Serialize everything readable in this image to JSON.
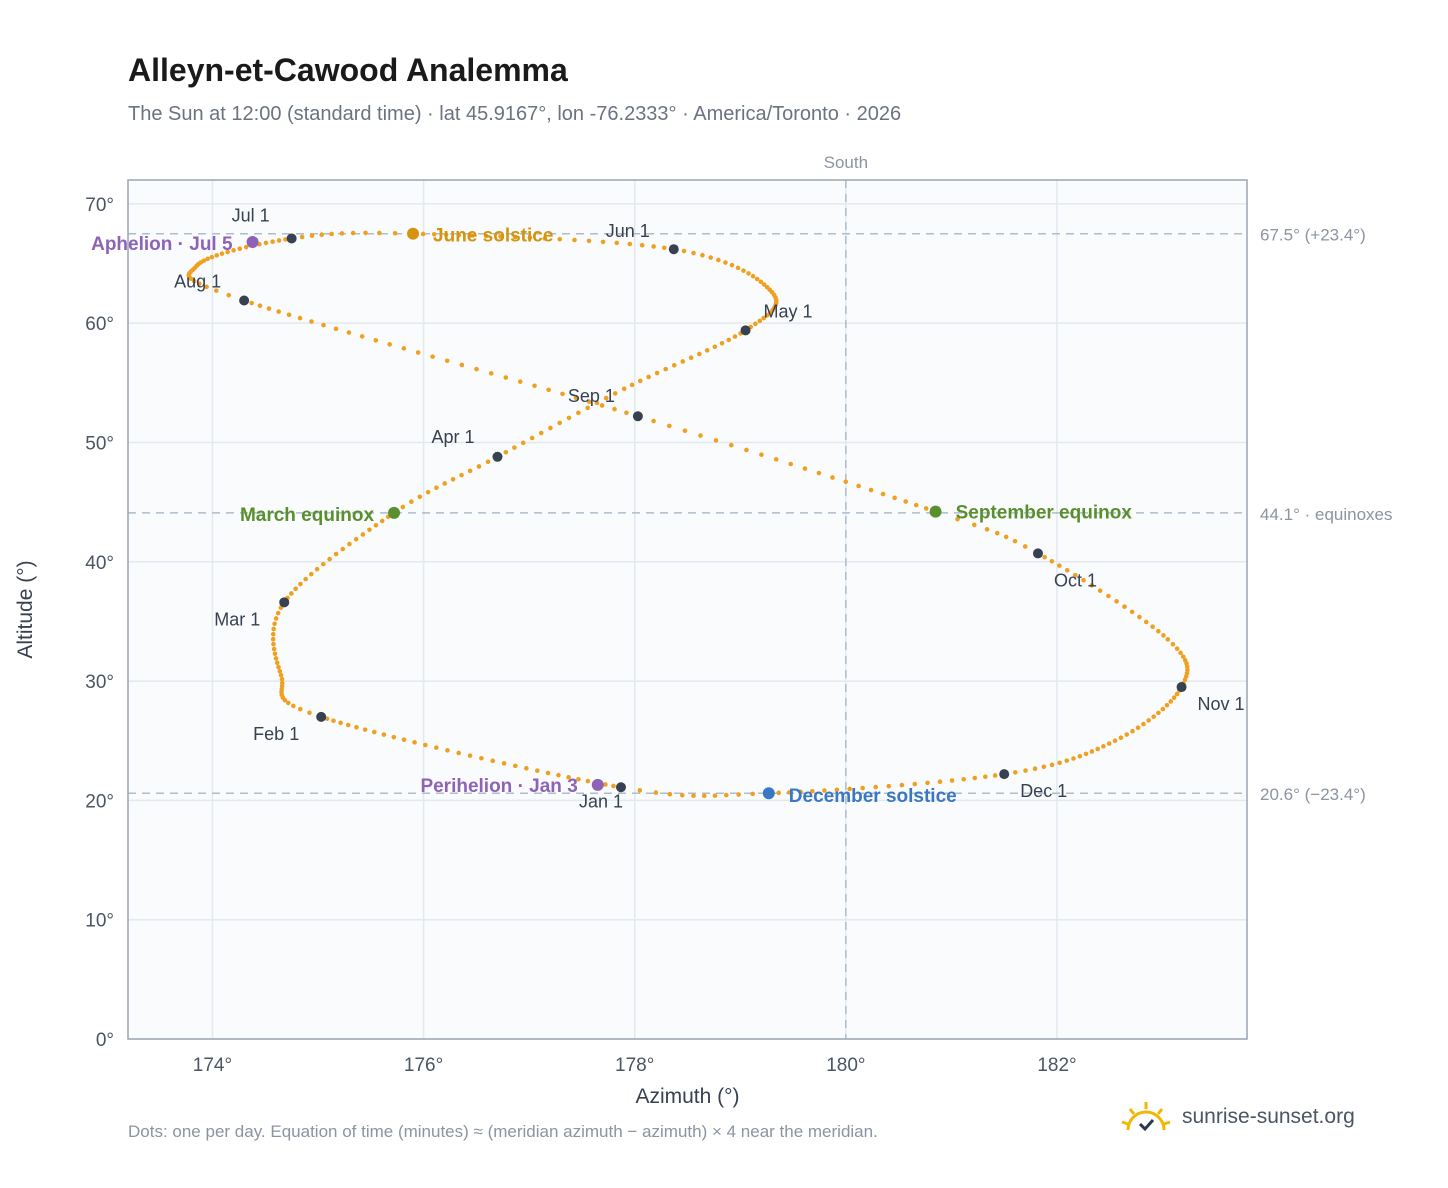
{
  "header": {
    "title": "Alleyn-et-Cawood Analemma",
    "subtitle": "The Sun at 12:00 (standard time) · lat 45.9167°, lon -76.2333° · America/Toronto · 2026"
  },
  "footer": {
    "note": "Dots: one per day. Equation of time (minutes) ≈ (meridian azimuth − azimuth) × 4 near the meridian.",
    "brand": "sunrise-sunset.org"
  },
  "colors": {
    "path": "#f0a020",
    "month_marker": "#374151",
    "solstice_june": "#d4940e",
    "solstice_december": "#3b78c3",
    "equinox": "#5a8f2e",
    "apsis": "#8e63b5",
    "grid": "#e3e9f0",
    "reference_line": "#aebccc",
    "plot_bg": "#f9fbfd"
  },
  "chart_data": {
    "type": "scatter",
    "title": "Alleyn-et-Cawood Analemma",
    "xlabel": "Azimuth (°)",
    "ylabel": "Altitude (°)",
    "xlim": [
      173.2,
      183.8
    ],
    "ylim": [
      0,
      72
    ],
    "xticks": [
      174,
      176,
      178,
      180,
      182
    ],
    "yticks": [
      0,
      10,
      20,
      30,
      40,
      50,
      60,
      70
    ],
    "x_tick_labels": [
      "174°",
      "176°",
      "178°",
      "180°",
      "182°"
    ],
    "y_tick_labels": [
      "0°",
      "10°",
      "20°",
      "30°",
      "40°",
      "50°",
      "60°",
      "70°"
    ],
    "grid": true,
    "south_line": {
      "azimuth": 180,
      "label": "South"
    },
    "reference_lines": [
      {
        "altitude": 67.5,
        "label": "67.5° (+23.4°)"
      },
      {
        "altitude": 44.1,
        "label": "44.1° · equinoxes"
      },
      {
        "altitude": 20.6,
        "label": "20.6° (−23.4°)"
      }
    ],
    "path_anchors": [
      {
        "doy": 1,
        "az": 177.87,
        "alt": 21.1
      },
      {
        "doy": 32,
        "az": 175.03,
        "alt": 27.0
      },
      {
        "doy": 45,
        "az": 174.65,
        "alt": 30.5
      },
      {
        "doy": 60,
        "az": 174.68,
        "alt": 36.6
      },
      {
        "doy": 79,
        "az": 175.72,
        "alt": 44.1
      },
      {
        "doy": 91,
        "az": 176.7,
        "alt": 48.8
      },
      {
        "doy": 105,
        "az": 177.9,
        "alt": 54.5
      },
      {
        "doy": 121,
        "az": 179.05,
        "alt": 59.4
      },
      {
        "doy": 135,
        "az": 179.3,
        "alt": 62.6
      },
      {
        "doy": 152,
        "az": 178.37,
        "alt": 66.2
      },
      {
        "doy": 172,
        "az": 175.9,
        "alt": 67.5
      },
      {
        "doy": 182,
        "az": 174.75,
        "alt": 67.1
      },
      {
        "doy": 200,
        "az": 173.85,
        "alt": 64.8
      },
      {
        "doy": 213,
        "az": 174.3,
        "alt": 61.9
      },
      {
        "doy": 244,
        "az": 178.03,
        "alt": 52.2
      },
      {
        "doy": 266,
        "az": 180.85,
        "alt": 44.2
      },
      {
        "doy": 274,
        "az": 181.82,
        "alt": 40.7
      },
      {
        "doy": 292,
        "az": 183.05,
        "alt": 33.5
      },
      {
        "doy": 305,
        "az": 183.18,
        "alt": 29.5
      },
      {
        "doy": 320,
        "az": 182.55,
        "alt": 25.0
      },
      {
        "doy": 335,
        "az": 181.5,
        "alt": 22.2
      },
      {
        "doy": 355,
        "az": 179.27,
        "alt": 20.6
      },
      {
        "doy": 365,
        "az": 177.95,
        "alt": 21.0
      }
    ],
    "month_markers": [
      {
        "label": "Jan 1",
        "az": 177.87,
        "alt": 21.1
      },
      {
        "label": "Feb 1",
        "az": 175.03,
        "alt": 27.0
      },
      {
        "label": "Mar 1",
        "az": 174.68,
        "alt": 36.6
      },
      {
        "label": "Apr 1",
        "az": 176.7,
        "alt": 48.8
      },
      {
        "label": "May 1",
        "az": 179.05,
        "alt": 59.4
      },
      {
        "label": "Jun 1",
        "az": 178.37,
        "alt": 66.2
      },
      {
        "label": "Jul 1",
        "az": 174.75,
        "alt": 67.1
      },
      {
        "label": "Aug 1",
        "az": 174.3,
        "alt": 61.9
      },
      {
        "label": "Sep 1",
        "az": 178.03,
        "alt": 52.2
      },
      {
        "label": "Oct 1",
        "az": 181.82,
        "alt": 40.7
      },
      {
        "label": "Nov 1",
        "az": 183.18,
        "alt": 29.5
      },
      {
        "label": "Dec 1",
        "az": 181.5,
        "alt": 22.2
      }
    ],
    "events": [
      {
        "label": "June solstice",
        "az": 175.9,
        "alt": 67.5,
        "color": "#d4940e"
      },
      {
        "label": "December solstice",
        "az": 179.27,
        "alt": 20.6,
        "color": "#3b78c3"
      },
      {
        "label": "March equinox",
        "az": 175.72,
        "alt": 44.1,
        "color": "#5a8f2e"
      },
      {
        "label": "September equinox",
        "az": 180.85,
        "alt": 44.2,
        "color": "#5a8f2e"
      },
      {
        "label": "Aphelion · Jul 5",
        "az": 174.38,
        "alt": 66.8,
        "color": "#8e63b5"
      },
      {
        "label": "Perihelion · Jan 3",
        "az": 177.65,
        "alt": 21.3,
        "color": "#8e63b5"
      }
    ]
  }
}
